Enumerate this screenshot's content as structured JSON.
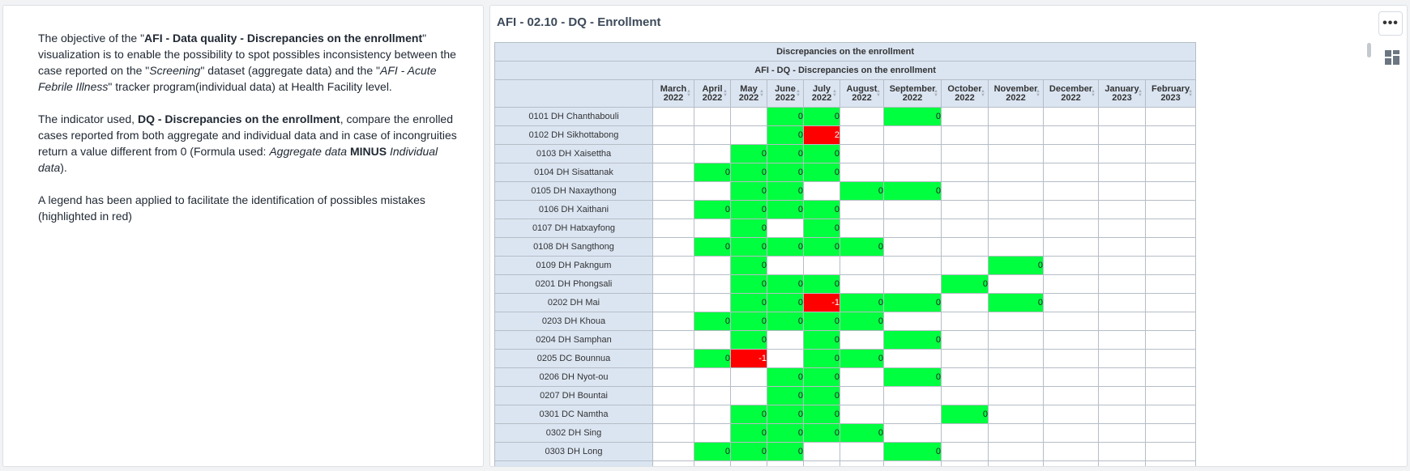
{
  "text_panel": {
    "p1": [
      {
        "t": "The objective of the \"",
        "s": "n"
      },
      {
        "t": "AFI - Data quality - Discrepancies on the enrollment",
        "s": "b"
      },
      {
        "t": "\" visualization is to enable the possibility to spot possibles inconsistency between the case reported on the \"",
        "s": "n"
      },
      {
        "t": "Screening",
        "s": "i"
      },
      {
        "t": "\" dataset (aggregate data) and the \"",
        "s": "n"
      },
      {
        "t": "AFI - Acute Febrile Illness",
        "s": "i"
      },
      {
        "t": "\" tracker program(individual data) at Health Facility level.",
        "s": "n"
      }
    ],
    "p2": [
      {
        "t": "The indicator used, ",
        "s": "n"
      },
      {
        "t": "DQ - Discrepancies on the enrollment",
        "s": "b"
      },
      {
        "t": ", compare the enrolled cases reported from both aggregate and individual data and in case of incongruities return a value different from 0 (Formula used: ",
        "s": "n"
      },
      {
        "t": "Aggregate data",
        "s": "i"
      },
      {
        "t": " ",
        "s": "n"
      },
      {
        "t": "MINUS",
        "s": "b"
      },
      {
        "t": " ",
        "s": "n"
      },
      {
        "t": "Individual data",
        "s": "i"
      },
      {
        "t": ").",
        "s": "n"
      }
    ],
    "p3": [
      {
        "t": "A legend has been applied to facilitate the identification of possibles mistakes (highlighted in red)",
        "s": "n"
      }
    ]
  },
  "viz": {
    "title": "AFI - 02.10 - DQ - Enrollment",
    "more_icon": "more-horizontal-icon",
    "view_icon": "grid-view-icon",
    "table_title": "Discrepancies on the enrollment",
    "table_subtitle": "AFI - DQ - Discrepancies on the enrollment",
    "columns": [
      [
        "March",
        "2022"
      ],
      [
        "April",
        "2022"
      ],
      [
        "May",
        "2022"
      ],
      [
        "June",
        "2022"
      ],
      [
        "July",
        "2022"
      ],
      [
        "August",
        "2022"
      ],
      [
        "September",
        "2022"
      ],
      [
        "October",
        "2022"
      ],
      [
        "November",
        "2022"
      ],
      [
        "December",
        "2022"
      ],
      [
        "January",
        "2023"
      ],
      [
        "February",
        "2023"
      ]
    ],
    "legend_colors": {
      "ok": "#00ff3f",
      "error": "#ff0000"
    },
    "rows": [
      {
        "name": "0101 DH Chanthabouli",
        "values": [
          "",
          "",
          "",
          "0",
          "0",
          "",
          "0",
          "",
          "",
          "",
          "",
          ""
        ]
      },
      {
        "name": "0102 DH Sikhottabong",
        "values": [
          "",
          "",
          "",
          "0",
          "2",
          "",
          "",
          "",
          "",
          "",
          "",
          ""
        ]
      },
      {
        "name": "0103 DH Xaisettha",
        "values": [
          "",
          "",
          "0",
          "0",
          "0",
          "",
          "",
          "",
          "",
          "",
          "",
          ""
        ]
      },
      {
        "name": "0104 DH Sisattanak",
        "values": [
          "",
          "0",
          "0",
          "0",
          "0",
          "",
          "",
          "",
          "",
          "",
          "",
          ""
        ]
      },
      {
        "name": "0105 DH Naxaythong",
        "values": [
          "",
          "",
          "0",
          "0",
          "",
          "0",
          "0",
          "",
          "",
          "",
          "",
          ""
        ]
      },
      {
        "name": "0106 DH Xaithani",
        "values": [
          "",
          "0",
          "0",
          "0",
          "0",
          "",
          "",
          "",
          "",
          "",
          "",
          ""
        ]
      },
      {
        "name": "0107 DH Hatxayfong",
        "values": [
          "",
          "",
          "0",
          "",
          "0",
          "",
          "",
          "",
          "",
          "",
          "",
          ""
        ]
      },
      {
        "name": "0108 DH Sangthong",
        "values": [
          "",
          "0",
          "0",
          "0",
          "0",
          "0",
          "",
          "",
          "",
          "",
          "",
          ""
        ]
      },
      {
        "name": "0109 DH Pakngum",
        "values": [
          "",
          "",
          "0",
          "",
          "",
          "",
          "",
          "",
          "0",
          "",
          "",
          ""
        ]
      },
      {
        "name": "0201 DH Phongsali",
        "values": [
          "",
          "",
          "0",
          "0",
          "0",
          "",
          "",
          "0",
          "",
          "",
          "",
          ""
        ]
      },
      {
        "name": "0202 DH Mai",
        "values": [
          "",
          "",
          "0",
          "0",
          "-1",
          "0",
          "0",
          "",
          "0",
          "",
          "",
          ""
        ]
      },
      {
        "name": "0203 DH Khoua",
        "values": [
          "",
          "0",
          "0",
          "0",
          "0",
          "0",
          "",
          "",
          "",
          "",
          "",
          ""
        ]
      },
      {
        "name": "0204 DH Samphan",
        "values": [
          "",
          "",
          "0",
          "",
          "0",
          "",
          "0",
          "",
          "",
          "",
          "",
          ""
        ]
      },
      {
        "name": "0205 DC Bounnua",
        "values": [
          "",
          "0",
          "-1",
          "",
          "0",
          "0",
          "",
          "",
          "",
          "",
          "",
          ""
        ]
      },
      {
        "name": "0206 DH Nyot-ou",
        "values": [
          "",
          "",
          "",
          "0",
          "0",
          "",
          "0",
          "",
          "",
          "",
          "",
          ""
        ]
      },
      {
        "name": "0207 DH Bountai",
        "values": [
          "",
          "",
          "",
          "0",
          "0",
          "",
          "",
          "",
          "",
          "",
          "",
          ""
        ]
      },
      {
        "name": "0301 DC Namtha",
        "values": [
          "",
          "",
          "0",
          "0",
          "0",
          "",
          "",
          "0",
          "",
          "",
          "",
          ""
        ]
      },
      {
        "name": "0302 DH Sing",
        "values": [
          "",
          "",
          "0",
          "0",
          "0",
          "0",
          "",
          "",
          "",
          "",
          "",
          ""
        ]
      },
      {
        "name": "0303 DH Long",
        "values": [
          "",
          "0",
          "0",
          "0",
          "",
          "",
          "0",
          "",
          "",
          "",
          "",
          ""
        ]
      },
      {
        "name": "",
        "values": [
          "",
          "",
          "",
          "",
          "",
          "",
          "",
          "",
          "",
          "",
          "",
          ""
        ]
      }
    ]
  }
}
